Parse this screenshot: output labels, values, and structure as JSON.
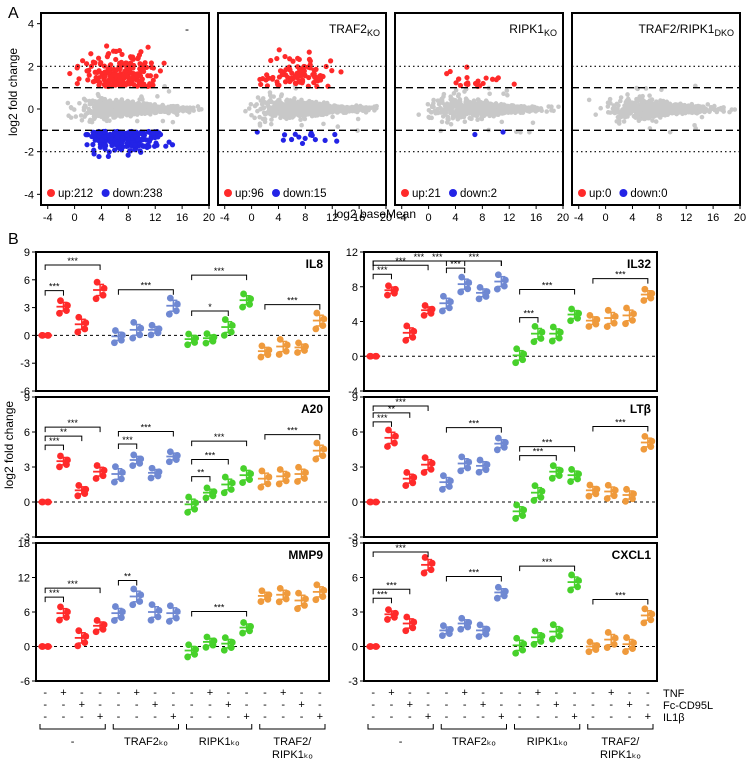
{
  "panel_labels": {
    "a": "A",
    "b": "B"
  },
  "ma_axes": {
    "xlabel": "log2 baseMean",
    "ylabel": "log2 fold change",
    "xticks": [
      "-4",
      "0",
      "4",
      "8",
      "12",
      "16",
      "20"
    ],
    "yticks": [
      "4",
      "2",
      "0",
      "-2",
      "-4"
    ]
  },
  "bar_axes": {
    "ylabel": "log2 fold change"
  },
  "conditions": {
    "labels": [
      "TNF",
      "Fc-CD95L",
      "IL1β"
    ],
    "tnf": [
      "-",
      "+",
      "-",
      "-"
    ],
    "cd95l": [
      "-",
      "-",
      "+",
      "-"
    ],
    "il1b": [
      "-",
      "-",
      "-",
      "+"
    ]
  },
  "groups": [
    {
      "line1": "-",
      "line2": ""
    },
    {
      "line1": "TRAF2ₖₒ",
      "line2": ""
    },
    {
      "line1": "RIPK1ₖₒ",
      "line2": ""
    },
    {
      "line1": "TRAF2/",
      "line2": "RIPK1ₖₒ"
    }
  ],
  "sig_star": {
    "three": "***",
    "two": "**",
    "one": "*"
  },
  "colors": {
    "up": "#ff2a2a",
    "down": "#2323e6",
    "ns": "#c8c8c8",
    "wt": "#ff2a2a",
    "traf2": "#6f88d2",
    "ripk1": "#47d12b",
    "dko": "#ef9a3c"
  },
  "chart_data": [
    {
      "type": "scatter",
      "title": "",
      "xlabel": "log2 baseMean",
      "ylabel": "log2 fold change",
      "xlim": [
        -5,
        20
      ],
      "ylim": [
        -4.5,
        4.5
      ],
      "up": 212,
      "down": 238,
      "up_label": "up:212",
      "down_label": "down:238",
      "legend": "-"
    },
    {
      "type": "scatter",
      "title": "TRAF2KO",
      "title_main": "TRAF2",
      "title_sub": "KO",
      "xlim": [
        -5,
        20
      ],
      "ylim": [
        -4.5,
        4.5
      ],
      "up": 96,
      "down": 15,
      "up_label": "up:96",
      "down_label": "down:15"
    },
    {
      "type": "scatter",
      "title": "RIPK1KO",
      "title_main": "RIPK1",
      "title_sub": "KO",
      "xlim": [
        -5,
        20
      ],
      "ylim": [
        -4.5,
        4.5
      ],
      "up": 21,
      "down": 2,
      "up_label": "up:21",
      "down_label": "down:2"
    },
    {
      "type": "scatter",
      "title": "TRAF2/RIPK1DKO",
      "title_main": "TRAF2/RIPK1",
      "title_sub": "DKO",
      "xlim": [
        -5,
        20
      ],
      "ylim": [
        -4.5,
        4.5
      ],
      "up": 0,
      "down": 0,
      "up_label": "up:0",
      "down_label": "down:0"
    },
    {
      "type": "scatter",
      "title": "IL8",
      "ylim": [
        -6,
        9
      ],
      "yticks": [
        "9",
        "6",
        "3",
        "0",
        "-3",
        "-6"
      ],
      "means": [
        0,
        3.1,
        1.2,
        4.9,
        -0.1,
        0.6,
        0.6,
        3.2,
        -0.4,
        -0.3,
        0.9,
        3.8,
        -1.7,
        -1.2,
        -1.3,
        1.6
      ],
      "sig": [
        [
          0,
          1,
          "***"
        ],
        [
          0,
          3,
          "***"
        ],
        [
          4,
          7,
          "***"
        ],
        [
          8,
          10,
          "*"
        ],
        [
          8,
          11,
          "***"
        ],
        [
          12,
          15,
          "***"
        ]
      ]
    },
    {
      "type": "scatter",
      "title": "IL32",
      "ylim": [
        -4,
        12
      ],
      "yticks": [
        "12",
        "8",
        "4",
        "0",
        "-4"
      ],
      "means": [
        0,
        7.6,
        2.7,
        5.3,
        6.1,
        8.3,
        7.3,
        8.6,
        0.1,
        2.6,
        2.6,
        4.8,
        4.1,
        4.4,
        4.7,
        7.1
      ],
      "sig": [
        [
          0,
          1,
          "***"
        ],
        [
          0,
          3,
          "***"
        ],
        [
          0,
          5,
          "***"
        ],
        [
          0,
          7,
          "***"
        ],
        [
          4,
          5,
          "***"
        ],
        [
          4,
          7,
          "***"
        ],
        [
          8,
          9,
          "***"
        ],
        [
          8,
          11,
          "***"
        ],
        [
          12,
          15,
          "***"
        ]
      ]
    },
    {
      "type": "scatter",
      "title": "A20",
      "ylim": [
        -3,
        9
      ],
      "yticks": [
        "9",
        "6",
        "3",
        "0",
        "-3"
      ],
      "means": [
        0,
        3.5,
        1.0,
        2.6,
        2.4,
        3.6,
        2.5,
        3.9,
        -0.2,
        0.8,
        1.5,
        2.3,
        2.0,
        2.2,
        2.4,
        4.4
      ],
      "sig": [
        [
          0,
          1,
          "***"
        ],
        [
          0,
          2,
          "**"
        ],
        [
          0,
          3,
          "***"
        ],
        [
          4,
          5,
          "***"
        ],
        [
          4,
          7,
          "***"
        ],
        [
          8,
          9,
          "**"
        ],
        [
          8,
          10,
          "***"
        ],
        [
          8,
          11,
          "***"
        ],
        [
          12,
          15,
          "***"
        ]
      ]
    },
    {
      "type": "scatter",
      "title": "LTβ",
      "ylim": [
        -3,
        9
      ],
      "yticks": [
        "9",
        "6",
        "3",
        "0",
        "-3"
      ],
      "means": [
        0,
        5.5,
        2.0,
        3.2,
        1.7,
        3.3,
        3.1,
        5.0,
        -0.8,
        0.8,
        2.6,
        2.3,
        1.0,
        0.9,
        0.6,
        5.1
      ],
      "sig": [
        [
          0,
          1,
          "***"
        ],
        [
          0,
          2,
          "**"
        ],
        [
          0,
          3,
          "***"
        ],
        [
          4,
          7,
          "***"
        ],
        [
          8,
          10,
          "***"
        ],
        [
          8,
          11,
          "***"
        ],
        [
          12,
          15,
          "***"
        ]
      ]
    },
    {
      "type": "scatter",
      "title": "MMP9",
      "ylim": [
        -6,
        18
      ],
      "yticks": [
        "18",
        "12",
        "6",
        "0",
        "-6"
      ],
      "means": [
        0,
        5.8,
        1.5,
        3.6,
        5.8,
        8.7,
        6.0,
        5.8,
        -0.7,
        0.8,
        0.5,
        3.3,
        8.8,
        9.0,
        8.0,
        9.5
      ],
      "sig": [
        [
          0,
          1,
          "***"
        ],
        [
          0,
          3,
          "***"
        ],
        [
          4,
          5,
          "**"
        ],
        [
          8,
          11,
          "***"
        ]
      ]
    },
    {
      "type": "scatter",
      "title": "CXCL1",
      "ylim": [
        -3,
        9
      ],
      "yticks": [
        "9",
        "6",
        "3",
        "0",
        "-3"
      ],
      "means": [
        0,
        2.8,
        2.0,
        7.1,
        1.4,
        2.0,
        1.4,
        4.7,
        0.1,
        0.8,
        1.3,
        5.6,
        0.0,
        0.6,
        0.2,
        2.7
      ],
      "sig": [
        [
          0,
          1,
          "***"
        ],
        [
          0,
          2,
          "***"
        ],
        [
          0,
          3,
          "***"
        ],
        [
          4,
          7,
          "***"
        ],
        [
          8,
          11,
          "***"
        ],
        [
          12,
          15,
          "***"
        ]
      ]
    }
  ]
}
